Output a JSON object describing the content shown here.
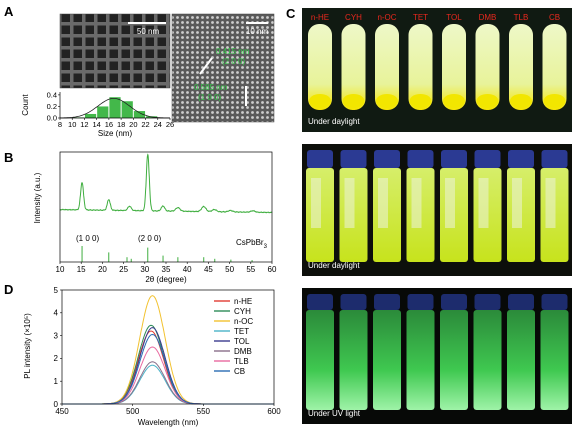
{
  "panels": {
    "A": {
      "letter": "A",
      "scale_bar_left": "50 nm",
      "scale_bar_right": "10 nm",
      "lattice_1": "0.415 nm",
      "lattice_1_plane": "(2 0 0)",
      "lattice_2": "0.585 nm",
      "lattice_2_plane": "(1 0 0)"
    },
    "B": {
      "letter": "B",
      "peak_1": "(1 0 0)",
      "peak_2": "(2 0 0)",
      "reference": "CsPbBr",
      "reference_sub": "3"
    },
    "C": {
      "letter": "C",
      "solvents": [
        "n-HE",
        "CYH",
        "n-OC",
        "TET",
        "TOL",
        "DMB",
        "TLB",
        "CB"
      ],
      "caption_top": "Under daylight",
      "caption_mid": "Under daylight",
      "caption_bottom": "Under UV light"
    },
    "D": {
      "letter": "D"
    }
  },
  "colors": {
    "tem_green": "#37c84a",
    "solvent_label": "#e8281e",
    "curve_yellow": "#f2c230",
    "curve_blue": "#2a6bb4"
  },
  "chart_data": [
    {
      "type": "bar",
      "xlabel": "Size (nm)",
      "ylabel": "Count",
      "xticks": [
        8,
        10,
        12,
        14,
        16,
        18,
        20,
        22,
        24,
        26
      ],
      "yticks": [
        0.0,
        0.2,
        0.4
      ],
      "xlim": [
        8,
        26
      ],
      "ylim": [
        0,
        0.45
      ],
      "bins": [
        10,
        12,
        14,
        16,
        18,
        20,
        22,
        24
      ],
      "values": [
        0.01,
        0.07,
        0.2,
        0.36,
        0.29,
        0.12,
        0.03,
        0.0
      ],
      "fit": "gaussian",
      "fit_mean": 16.8,
      "fit_sigma": 2.6,
      "fit_peak": 0.34
    },
    {
      "type": "line",
      "xlabel": "2θ (degree)",
      "ylabel": "Intensity (a.u.)",
      "xticks": [
        10,
        15,
        20,
        25,
        30,
        35,
        40,
        45,
        50,
        55,
        60
      ],
      "xlim": [
        10,
        60
      ],
      "ylim": [
        0,
        100
      ],
      "baseline": 20,
      "peaks": [
        {
          "x": 15.2,
          "h": 38,
          "w": 0.35
        },
        {
          "x": 21.5,
          "h": 15,
          "w": 0.35
        },
        {
          "x": 26.4,
          "h": 6,
          "w": 0.4
        },
        {
          "x": 30.7,
          "h": 78,
          "w": 0.35
        },
        {
          "x": 34.3,
          "h": 7,
          "w": 0.4
        },
        {
          "x": 37.8,
          "h": 5,
          "w": 0.5
        },
        {
          "x": 43.9,
          "h": 7,
          "w": 0.5
        },
        {
          "x": 46.4,
          "h": 3,
          "w": 0.5
        },
        {
          "x": 50.2,
          "h": 2,
          "w": 0.5
        },
        {
          "x": 55.5,
          "h": 2,
          "w": 0.5
        }
      ],
      "reference_sticks": [
        {
          "x": 15.2,
          "h": 10
        },
        {
          "x": 21.5,
          "h": 6
        },
        {
          "x": 25.8,
          "h": 3
        },
        {
          "x": 26.8,
          "h": 2
        },
        {
          "x": 30.7,
          "h": 9
        },
        {
          "x": 34.3,
          "h": 4
        },
        {
          "x": 37.8,
          "h": 3
        },
        {
          "x": 43.9,
          "h": 3
        },
        {
          "x": 46.5,
          "h": 2
        },
        {
          "x": 50.3,
          "h": 1.5
        },
        {
          "x": 55.3,
          "h": 1.2
        }
      ]
    },
    {
      "type": "line",
      "xlabel": "Wavelength (nm)",
      "ylabel": "PL intensity (×10⁵)",
      "xticks": [
        450,
        500,
        550,
        600
      ],
      "yticks": [
        0,
        1,
        2,
        3,
        4,
        5
      ],
      "xlim": [
        450,
        600
      ],
      "ylim": [
        0,
        5
      ],
      "series": [
        {
          "name": "n-HE",
          "peak": 3.2,
          "center": 513,
          "sigma": 9,
          "color": "#e03c32"
        },
        {
          "name": "CYH",
          "peak": 3.45,
          "center": 513,
          "sigma": 9,
          "color": "#2e8b57"
        },
        {
          "name": "n-OC",
          "peak": 4.75,
          "center": 514,
          "sigma": 9,
          "color": "#f2c230"
        },
        {
          "name": "TET",
          "peak": 1.7,
          "center": 514,
          "sigma": 9,
          "color": "#4bb3c8"
        },
        {
          "name": "TOL",
          "peak": 3.35,
          "center": 514,
          "sigma": 9,
          "color": "#3b3b8e"
        },
        {
          "name": "DMB",
          "peak": 1.85,
          "center": 514,
          "sigma": 9,
          "color": "#8a6f8a"
        },
        {
          "name": "TLB",
          "peak": 2.5,
          "center": 514,
          "sigma": 9,
          "color": "#e86aa0"
        },
        {
          "name": "CB",
          "peak": 3.05,
          "center": 514,
          "sigma": 9,
          "color": "#2a6bb4"
        }
      ]
    }
  ]
}
